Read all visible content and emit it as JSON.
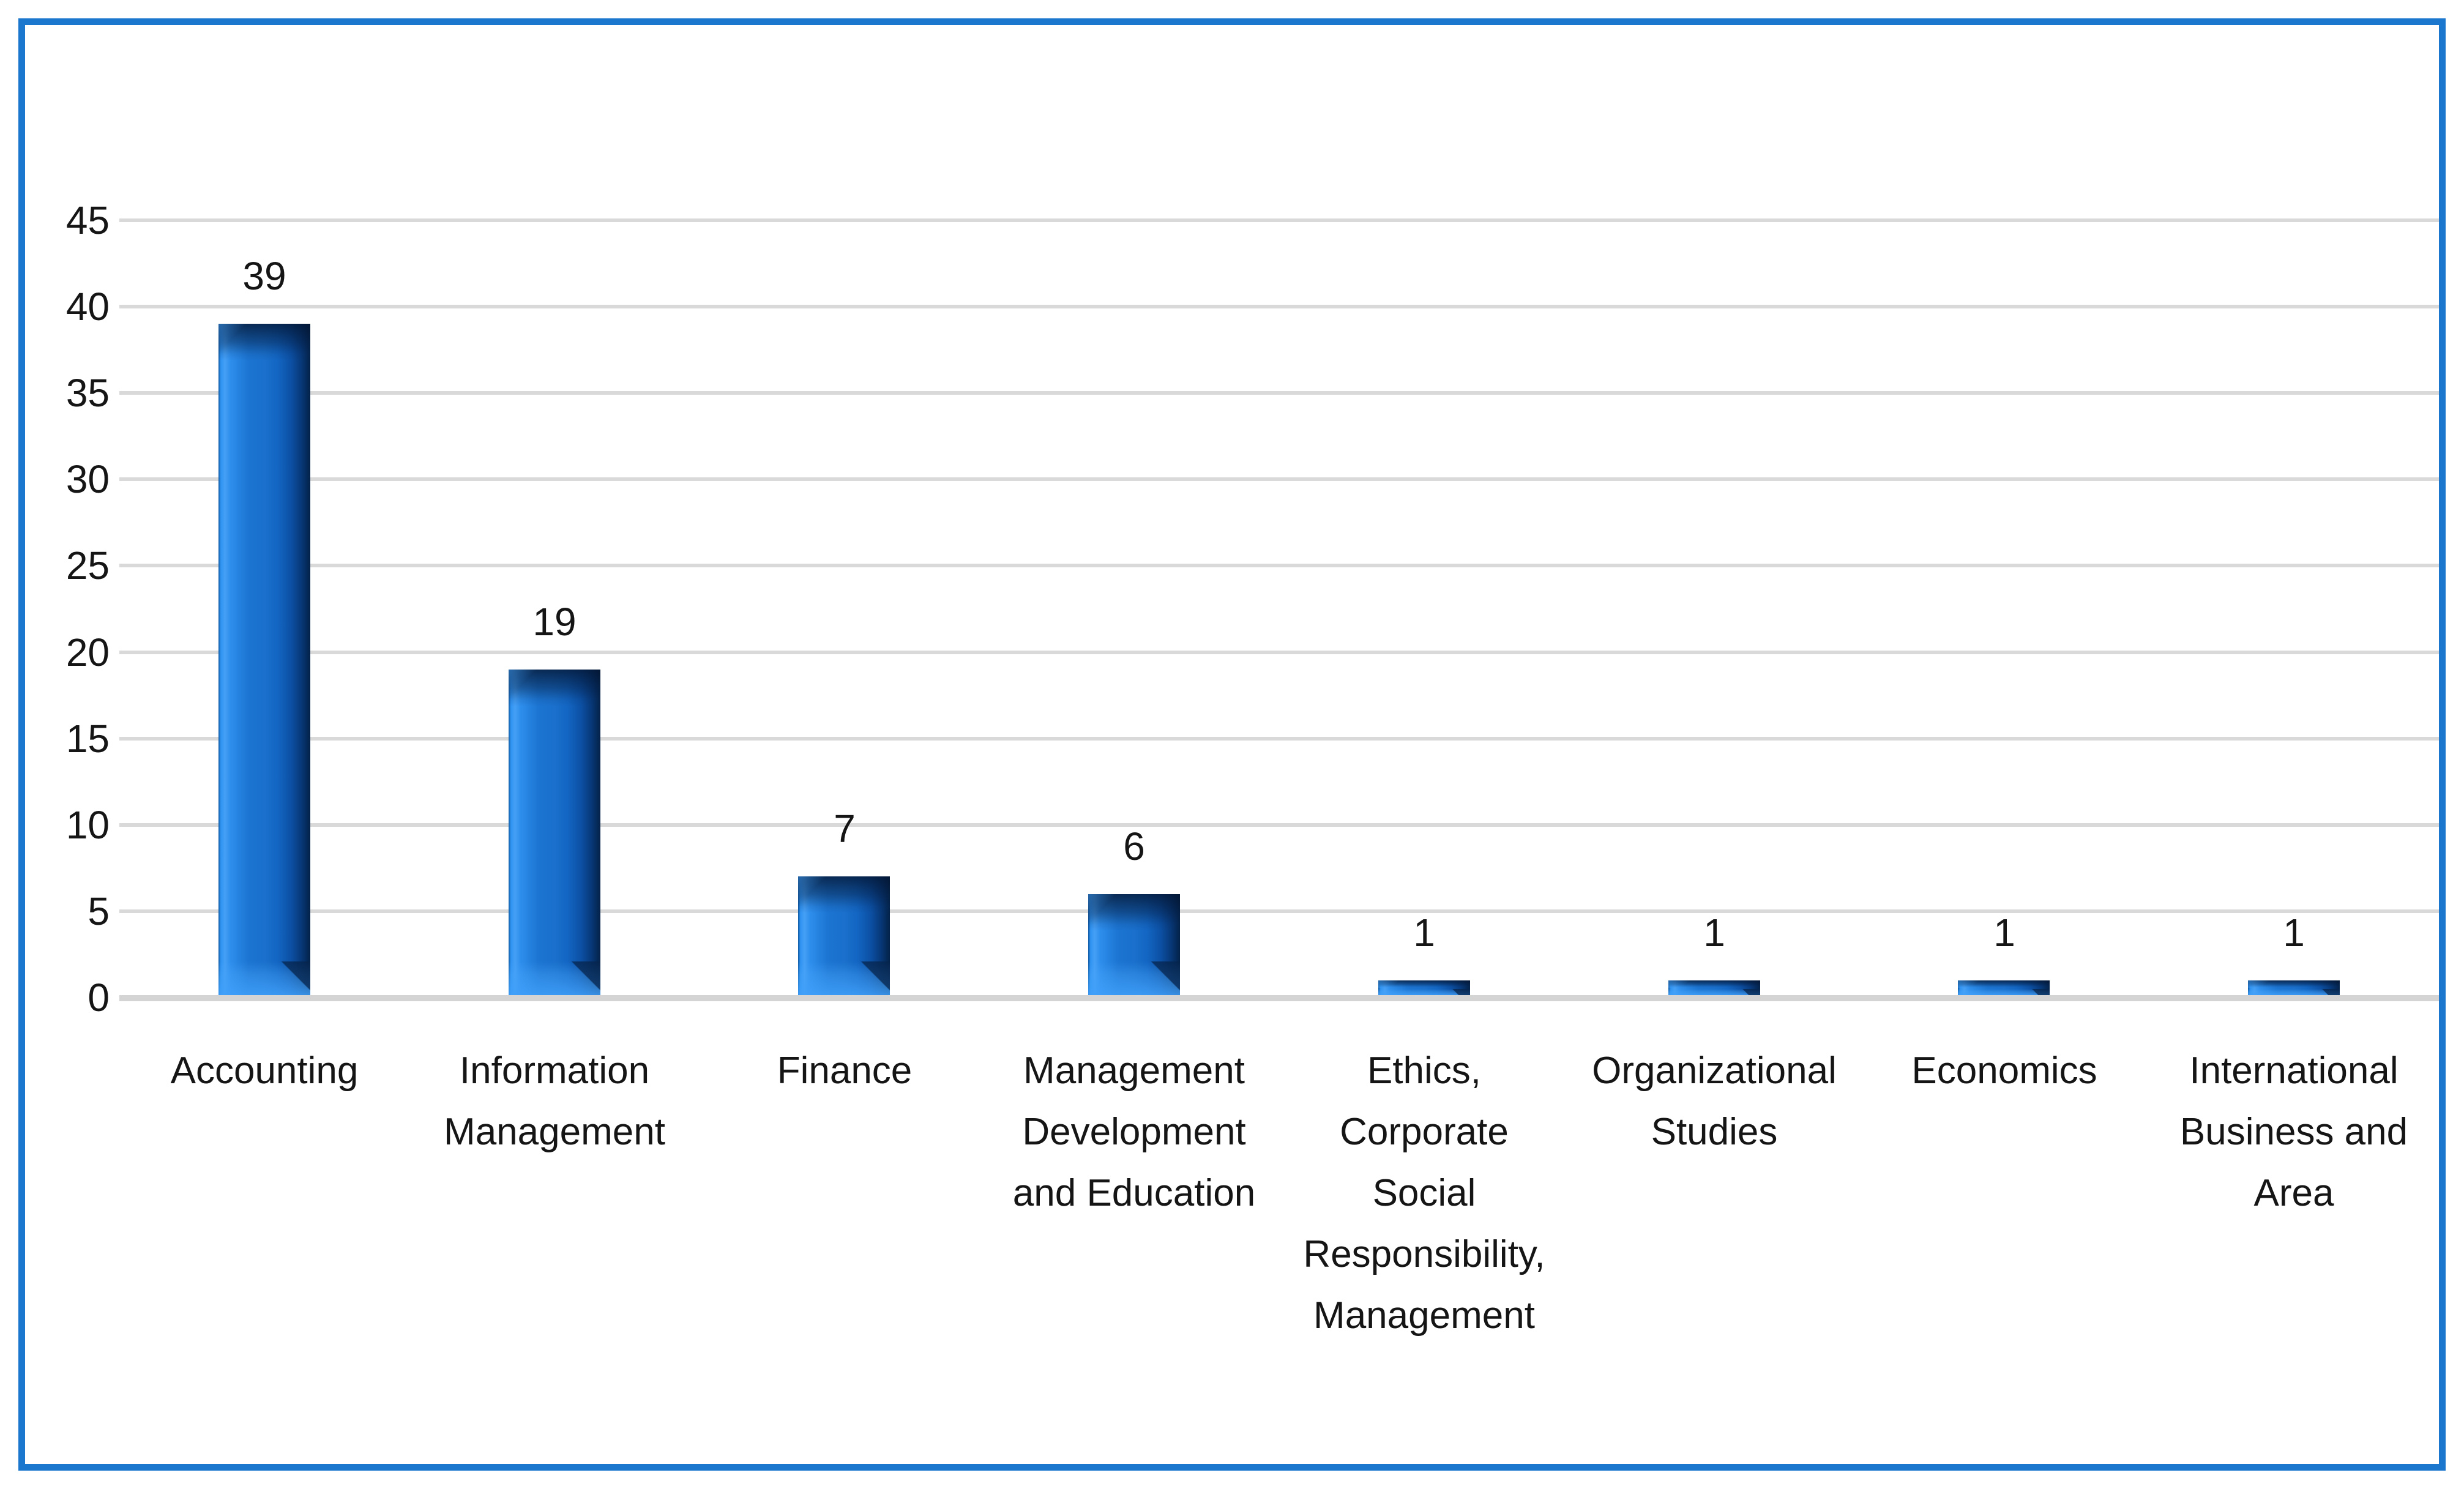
{
  "chart_data": {
    "type": "bar",
    "title": "",
    "xlabel": "",
    "ylabel": "",
    "categories": [
      "Accounting",
      "Information Management",
      "Finance",
      "Management Development and Education",
      "Ethics, Corporate Social Responsibility, Management",
      "Organizational Studies",
      "Economics",
      "International Business and Area"
    ],
    "category_label_lines": [
      [
        "Accounting"
      ],
      [
        "Information",
        "Management"
      ],
      [
        "Finance"
      ],
      [
        "Management",
        "Development",
        "and Education"
      ],
      [
        "Ethics,",
        "Corporate",
        "Social",
        "Responsibility,",
        "Management"
      ],
      [
        "Organizational",
        "Studies"
      ],
      [
        "Economics"
      ],
      [
        "International",
        "Business and",
        "Area"
      ]
    ],
    "values": [
      39,
      19,
      7,
      6,
      1,
      1,
      1,
      1
    ],
    "data_labels": [
      "39",
      "19",
      "7",
      "6",
      "1",
      "1",
      "1",
      "1"
    ],
    "ylim": [
      0,
      45
    ],
    "yticks": [
      "0",
      "5",
      "10",
      "15",
      "20",
      "25",
      "30",
      "35",
      "40",
      "45"
    ],
    "grid": true,
    "legend": false,
    "colors": {
      "frame_border": "#1B76CE",
      "background": "#FFFFFF",
      "gridline": "#D9D9D9",
      "axis_line": "#D4D4D4",
      "text": "#151515",
      "bar_face": "#1A70CC",
      "bar_highlight": "#3BA0F8",
      "bar_shadow": "#052B5C"
    }
  }
}
